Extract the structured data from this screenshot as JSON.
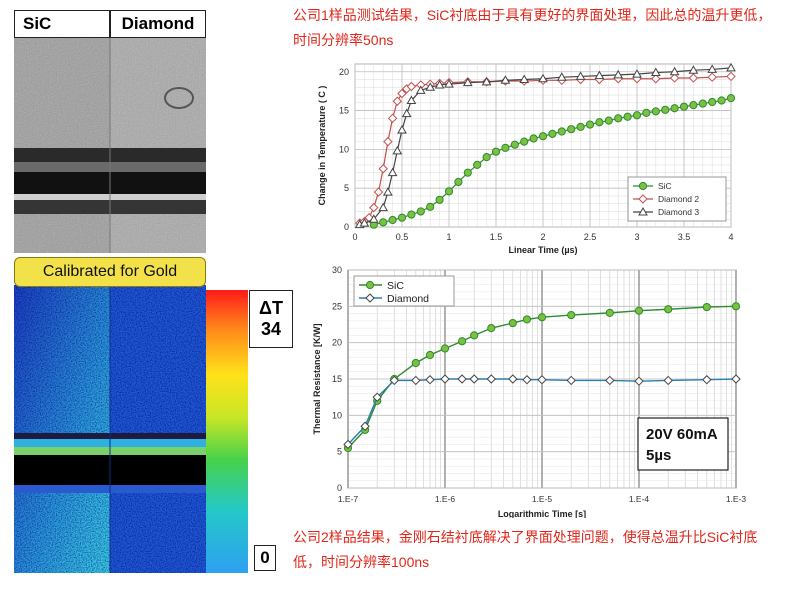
{
  "images": {
    "label_sic": "SiC",
    "label_diamond": "Diamond",
    "calibrated_banner": "Calibrated for Gold",
    "scale_title": "ΔT",
    "scale_max": "34",
    "scale_min": "0"
  },
  "notes": {
    "top": "公司1样品测试结果，SiC衬底由于具有更好的界面处理，因此总的温升更低，时间分辨率50ns",
    "bottom": "公司2样品结果，金刚石结衬底解决了界面处理问题，使得总温升比SiC衬底低，时间分辨率100ns"
  },
  "colors": {
    "sic": "#2e8b2e",
    "sic_fill": "#7ac143",
    "diamond2": "#c0504d",
    "diamond3": "#444444",
    "note_red": "#e0261a",
    "banner": "#f3e14a"
  },
  "chart_data": [
    {
      "type": "line",
      "title": "",
      "xlabel": "Linear Time (µs)",
      "ylabel": "Change in Temperature ( C )",
      "xlim": [
        0,
        4
      ],
      "ylim": [
        0,
        21
      ],
      "xticks": [
        "0",
        "0.5",
        "1",
        "1.5",
        "2",
        "2.5",
        "3",
        "3.5",
        "4"
      ],
      "yticks": [
        "0",
        "5",
        "10",
        "15",
        "20"
      ],
      "grid": true,
      "legend": "bottom-right",
      "series": [
        {
          "name": "SiC",
          "x": [
            0.2,
            0.3,
            0.4,
            0.5,
            0.6,
            0.7,
            0.8,
            0.9,
            1.0,
            1.1,
            1.2,
            1.3,
            1.4,
            1.5,
            1.6,
            1.7,
            1.8,
            1.9,
            2.0,
            2.1,
            2.2,
            2.3,
            2.4,
            2.5,
            2.6,
            2.7,
            2.8,
            2.9,
            3.0,
            3.1,
            3.2,
            3.3,
            3.4,
            3.5,
            3.6,
            3.7,
            3.8,
            3.9,
            4.0
          ],
          "y": [
            0.3,
            0.6,
            0.9,
            1.2,
            1.6,
            2.0,
            2.6,
            3.5,
            4.6,
            5.8,
            7.0,
            8.0,
            9.0,
            9.7,
            10.2,
            10.6,
            11.0,
            11.4,
            11.7,
            12.0,
            12.3,
            12.6,
            12.9,
            13.2,
            13.5,
            13.7,
            14.0,
            14.2,
            14.4,
            14.7,
            14.9,
            15.1,
            15.3,
            15.5,
            15.7,
            15.9,
            16.1,
            16.3,
            16.6
          ]
        },
        {
          "name": "Diamond 2",
          "x": [
            0.05,
            0.1,
            0.15,
            0.2,
            0.25,
            0.3,
            0.35,
            0.4,
            0.45,
            0.5,
            0.55,
            0.6,
            0.7,
            0.8,
            0.9,
            1.0,
            1.2,
            1.4,
            1.6,
            1.8,
            2.0,
            2.2,
            2.4,
            2.6,
            2.8,
            3.0,
            3.2,
            3.4,
            3.6,
            3.8,
            4.0
          ],
          "y": [
            0.5,
            0.7,
            1.2,
            2.5,
            4.5,
            7.5,
            11.0,
            14.0,
            16.2,
            17.2,
            17.8,
            18.1,
            18.3,
            18.4,
            18.5,
            18.6,
            18.7,
            18.7,
            18.8,
            18.8,
            18.9,
            18.9,
            19.0,
            19.0,
            19.1,
            19.1,
            19.1,
            19.2,
            19.2,
            19.3,
            19.4
          ]
        },
        {
          "name": "Diamond 3",
          "x": [
            0.05,
            0.1,
            0.2,
            0.3,
            0.35,
            0.4,
            0.45,
            0.5,
            0.55,
            0.6,
            0.7,
            0.8,
            0.9,
            1.0,
            1.2,
            1.4,
            1.6,
            1.8,
            2.0,
            2.2,
            2.4,
            2.6,
            2.8,
            3.0,
            3.2,
            3.4,
            3.6,
            3.8,
            4.0
          ],
          "y": [
            0.3,
            0.5,
            1.0,
            2.5,
            4.5,
            7.0,
            9.8,
            12.5,
            14.6,
            16.3,
            17.6,
            18.0,
            18.3,
            18.4,
            18.6,
            18.7,
            18.9,
            19.0,
            19.1,
            19.3,
            19.4,
            19.5,
            19.6,
            19.7,
            19.9,
            20.0,
            20.2,
            20.3,
            20.5
          ]
        }
      ]
    },
    {
      "type": "line",
      "title": "",
      "xlabel": "Logarithmic Time [s]",
      "ylabel": "Thermal Resistance [K/W]",
      "xscale": "log",
      "xlim": [
        1e-07,
        0.001
      ],
      "ylim": [
        0,
        30
      ],
      "xticks": [
        "1.E-7",
        "1.E-6",
        "1.E-5",
        "1.E-4",
        "1.E-3"
      ],
      "yticks": [
        "0",
        "5",
        "10",
        "15",
        "20",
        "25",
        "30"
      ],
      "grid": true,
      "legend": "top-left",
      "annotation": [
        "20V 60mA",
        "5µs"
      ],
      "series": [
        {
          "name": "SiC",
          "x": [
            1e-07,
            1.5e-07,
            2e-07,
            3e-07,
            5e-07,
            7e-07,
            1e-06,
            1.5e-06,
            2e-06,
            3e-06,
            5e-06,
            7e-06,
            1e-05,
            2e-05,
            5e-05,
            0.0001,
            0.0002,
            0.0005,
            0.001
          ],
          "y": [
            5.5,
            8.0,
            12.0,
            15.0,
            17.2,
            18.3,
            19.2,
            20.2,
            21.0,
            22.0,
            22.7,
            23.2,
            23.5,
            23.8,
            24.1,
            24.4,
            24.6,
            24.9,
            25.0
          ]
        },
        {
          "name": "Diamond",
          "x": [
            1e-07,
            1.5e-07,
            2e-07,
            3e-07,
            5e-07,
            7e-07,
            1e-06,
            1.5e-06,
            2e-06,
            3e-06,
            5e-06,
            7e-06,
            1e-05,
            2e-05,
            5e-05,
            0.0001,
            0.0002,
            0.0005,
            0.001
          ],
          "y": [
            6.0,
            8.5,
            12.5,
            14.8,
            14.8,
            14.9,
            15.0,
            15.0,
            15.0,
            15.0,
            15.0,
            14.9,
            14.9,
            14.8,
            14.8,
            14.7,
            14.8,
            14.9,
            15.0
          ]
        }
      ]
    }
  ]
}
